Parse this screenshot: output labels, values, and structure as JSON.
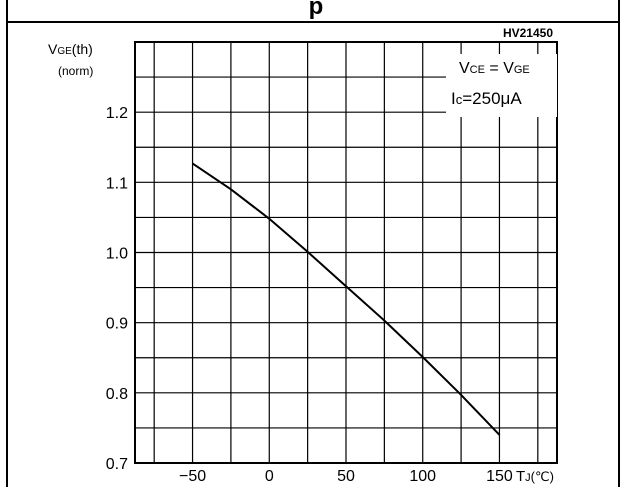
{
  "header": {
    "partial_caption": "p"
  },
  "chart_data": {
    "type": "line",
    "code": "HV21450",
    "ylabel_main": "V",
    "ylabel_sub": "GE",
    "ylabel_suffix": "(th)",
    "ylabel_norm": "(norm)",
    "xlabel_main": "T",
    "xlabel_sub": "J",
    "xlabel_unit": "(℃)",
    "legend": {
      "line1_a": "V",
      "line1_a_sub": "CE",
      "line1_eq": " = ",
      "line1_b": "V",
      "line1_b_sub": "GE",
      "line2_a": "I",
      "line2_a_sub": "c",
      "line2_val": "=250μA"
    },
    "x_ticks": [
      -50,
      0,
      50,
      100,
      150
    ],
    "x_tick_labels": [
      "−50",
      "0",
      "50",
      "100",
      "150"
    ],
    "y_ticks": [
      0.7,
      0.8,
      0.9,
      1.0,
      1.1,
      1.2
    ],
    "y_tick_labels": [
      "0.7",
      "0.8",
      "0.9",
      "1.0",
      "1.1",
      "1.2"
    ],
    "xlim": [
      -87.5,
      187.5
    ],
    "ylim": [
      0.7,
      1.3
    ],
    "grid": true,
    "series": [
      {
        "x": [
          -50,
          -25,
          0,
          25,
          50,
          75,
          100,
          125,
          150
        ],
        "y": [
          1.127,
          1.09,
          1.048,
          1.001,
          0.952,
          0.903,
          0.851,
          0.797,
          0.74
        ]
      }
    ]
  }
}
